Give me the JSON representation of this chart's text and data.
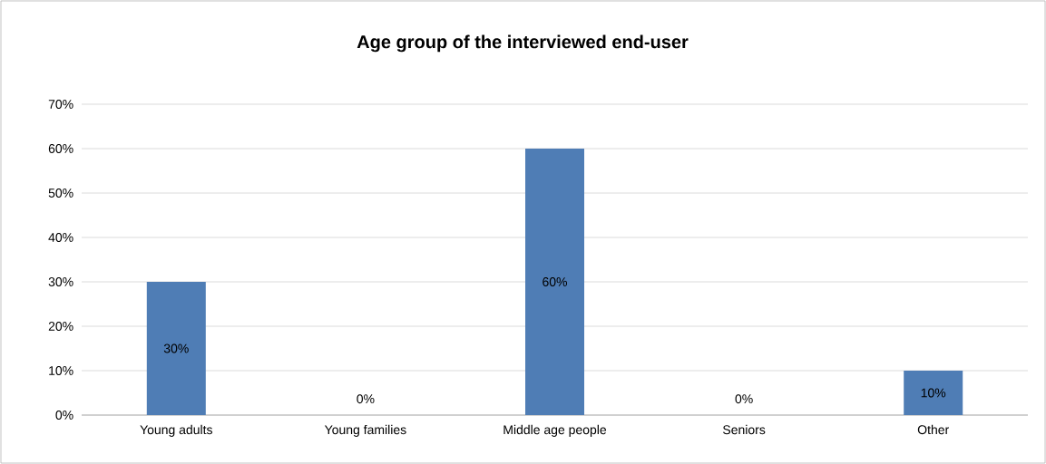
{
  "chart_data": {
    "type": "bar",
    "title": "Age group of the interviewed end-user",
    "categories": [
      "Young adults",
      "Young families",
      "Middle age people",
      "Seniors",
      "Other"
    ],
    "values": [
      30,
      0,
      60,
      0,
      10
    ],
    "value_labels": [
      "30%",
      "0%",
      "60%",
      "0%",
      "10%"
    ],
    "color": "#4f7db5",
    "ylim": [
      0,
      70
    ],
    "yticks": [
      {
        "value": 0,
        "label": "0%"
      },
      {
        "value": 10,
        "label": "10%"
      },
      {
        "value": 20,
        "label": "20%"
      },
      {
        "value": 30,
        "label": "30%"
      },
      {
        "value": 40,
        "label": "40%"
      },
      {
        "value": 50,
        "label": "50%"
      },
      {
        "value": 60,
        "label": "60%"
      },
      {
        "value": 70,
        "label": "70%"
      }
    ],
    "grid": "y"
  }
}
